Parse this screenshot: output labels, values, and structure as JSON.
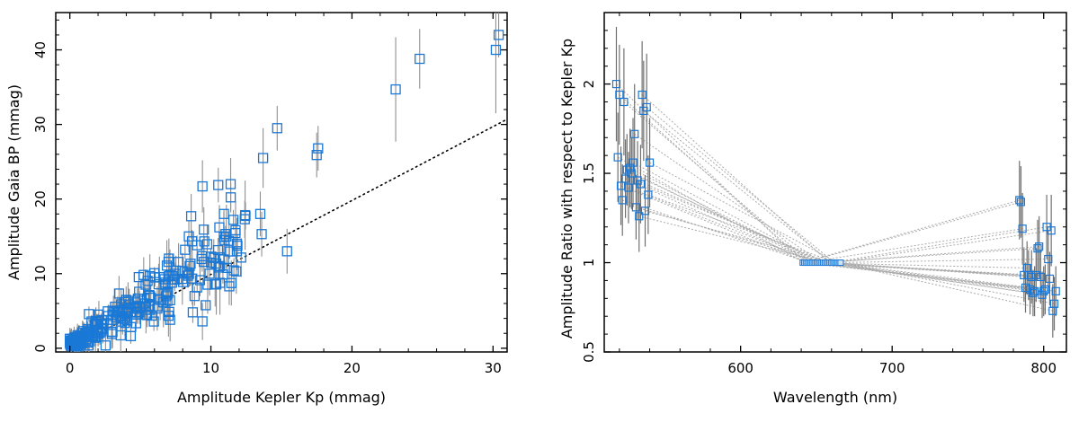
{
  "chart_data": [
    {
      "type": "scatter",
      "title": "",
      "xlabel": "Amplitude Kepler Kp (mmag)",
      "ylabel": "Amplitude Gaia BP (mmag)",
      "xlim": [
        -1,
        31
      ],
      "ylim": [
        -0.5,
        45
      ],
      "x_ticks": [
        0,
        10,
        20,
        30
      ],
      "y_ticks": [
        0,
        10,
        20,
        30,
        40
      ],
      "x_tick_labels": [
        "0",
        "10",
        "20",
        "30"
      ],
      "y_tick_labels": [
        "0",
        "10",
        "20",
        "30",
        "40"
      ],
      "grid": false,
      "marker": "open-square",
      "marker_color": "#1a78d6",
      "errorbar_color": "#909090",
      "reference_line": {
        "style": "dotted",
        "color": "#000000",
        "points": [
          [
            0,
            0
          ],
          [
            31,
            30.7
          ]
        ]
      },
      "highlighted_points": [
        {
          "x": 30.4,
          "y": 42.0,
          "err": 3.0
        },
        {
          "x": 30.2,
          "y": 40.0,
          "err": 8.5
        },
        {
          "x": 24.8,
          "y": 38.8,
          "err": 4.0
        },
        {
          "x": 23.1,
          "y": 34.7,
          "err": 7.0
        },
        {
          "x": 14.7,
          "y": 29.5,
          "err": 3.0
        },
        {
          "x": 17.6,
          "y": 26.8,
          "err": 3.0
        },
        {
          "x": 17.5,
          "y": 25.9,
          "err": 3.0
        },
        {
          "x": 13.7,
          "y": 25.5,
          "err": 4.0
        },
        {
          "x": 9.4,
          "y": 21.7,
          "err": 3.5
        },
        {
          "x": 11.4,
          "y": 22.0,
          "err": 3.5
        },
        {
          "x": 9.5,
          "y": 15.9,
          "err": 3.0
        },
        {
          "x": 12.4,
          "y": 17.3,
          "err": 2.5
        },
        {
          "x": 13.5,
          "y": 18.0,
          "err": 3.0
        },
        {
          "x": 15.4,
          "y": 13.0,
          "err": 3.0
        },
        {
          "x": 13.6,
          "y": 15.3,
          "err": 3.0
        },
        {
          "x": 10.6,
          "y": 16.2,
          "err": 3.0
        },
        {
          "x": 11.8,
          "y": 10.3,
          "err": 3.0
        },
        {
          "x": 11.3,
          "y": 8.3,
          "err": 2.5
        },
        {
          "x": 9.4,
          "y": 3.6,
          "err": 2.5
        },
        {
          "x": 10.3,
          "y": 8.6,
          "err": 3.0
        },
        {
          "x": 8.6,
          "y": 17.7,
          "err": 3.0
        }
      ],
      "point_cloud_note_free": true,
      "point_cloud": {
        "count": 260,
        "x_range": [
          0,
          12.5
        ],
        "slope_y_per_x": 1.25,
        "scatter": 1.8,
        "error_range": [
          0.5,
          3.5
        ]
      }
    },
    {
      "type": "scatter",
      "title": "",
      "xlabel": "Wavelength (nm)",
      "ylabel": "Amplitude Ratio with respect to Kepler Kp",
      "xlim": [
        510,
        815
      ],
      "ylim": [
        0.5,
        2.4
      ],
      "x_ticks": [
        600,
        700,
        800
      ],
      "y_ticks": [
        0.5,
        1,
        1.5,
        2
      ],
      "x_tick_labels": [
        "600",
        "700",
        "800"
      ],
      "y_tick_labels": [
        "0.5",
        "1",
        "1.5",
        "2"
      ],
      "grid": false,
      "marker": "open-square",
      "marker_color": "#1a78d6",
      "errorbar_color": "#707070",
      "connector_style": "dotted",
      "connector_color": "#aaaaaa",
      "kepler_reference": {
        "x_range": [
          641,
          666
        ],
        "y": 1.0
      },
      "bp_points": [
        {
          "x": 518,
          "y": 2.0,
          "err": 0.32
        },
        {
          "x": 519,
          "y": 1.59,
          "err": 0.25
        },
        {
          "x": 520,
          "y": 1.94,
          "err": 0.28
        },
        {
          "x": 521,
          "y": 1.43,
          "err": 0.22
        },
        {
          "x": 522,
          "y": 1.35,
          "err": 0.2
        },
        {
          "x": 523,
          "y": 1.9,
          "err": 0.3
        },
        {
          "x": 524,
          "y": 1.47,
          "err": 0.22
        },
        {
          "x": 525,
          "y": 1.52,
          "err": 0.2
        },
        {
          "x": 526,
          "y": 1.42,
          "err": 0.2
        },
        {
          "x": 527,
          "y": 1.53,
          "err": 0.22
        },
        {
          "x": 528,
          "y": 1.5,
          "err": 0.2
        },
        {
          "x": 529,
          "y": 1.56,
          "err": 0.25
        },
        {
          "x": 530,
          "y": 1.72,
          "err": 0.28
        },
        {
          "x": 531,
          "y": 1.31,
          "err": 0.18
        },
        {
          "x": 532,
          "y": 1.46,
          "err": 0.22
        },
        {
          "x": 533,
          "y": 1.26,
          "err": 0.2
        },
        {
          "x": 534,
          "y": 1.44,
          "err": 0.22
        },
        {
          "x": 535,
          "y": 1.94,
          "err": 0.3
        },
        {
          "x": 536,
          "y": 1.85,
          "err": 0.28
        },
        {
          "x": 537,
          "y": 1.29,
          "err": 0.2
        },
        {
          "x": 538,
          "y": 1.87,
          "err": 0.3
        },
        {
          "x": 539,
          "y": 1.38,
          "err": 0.22
        },
        {
          "x": 540,
          "y": 1.56,
          "err": 0.25
        }
      ],
      "rp_points": [
        {
          "x": 784,
          "y": 1.35,
          "err": 0.22
        },
        {
          "x": 785,
          "y": 1.34,
          "err": 0.2
        },
        {
          "x": 786,
          "y": 1.19,
          "err": 0.2
        },
        {
          "x": 787,
          "y": 0.93,
          "err": 0.15
        },
        {
          "x": 788,
          "y": 0.86,
          "err": 0.14
        },
        {
          "x": 789,
          "y": 0.97,
          "err": 0.15
        },
        {
          "x": 790,
          "y": 0.93,
          "err": 0.14
        },
        {
          "x": 791,
          "y": 0.85,
          "err": 0.14
        },
        {
          "x": 792,
          "y": 0.92,
          "err": 0.15
        },
        {
          "x": 793,
          "y": 0.83,
          "err": 0.13
        },
        {
          "x": 794,
          "y": 0.84,
          "err": 0.14
        },
        {
          "x": 795,
          "y": 0.93,
          "err": 0.15
        },
        {
          "x": 796,
          "y": 1.08,
          "err": 0.16
        },
        {
          "x": 797,
          "y": 1.09,
          "err": 0.17
        },
        {
          "x": 798,
          "y": 0.92,
          "err": 0.15
        },
        {
          "x": 799,
          "y": 0.82,
          "err": 0.13
        },
        {
          "x": 800,
          "y": 0.84,
          "err": 0.14
        },
        {
          "x": 801,
          "y": 0.85,
          "err": 0.14
        },
        {
          "x": 802,
          "y": 1.2,
          "err": 0.18
        },
        {
          "x": 803,
          "y": 1.02,
          "err": 0.16
        },
        {
          "x": 804,
          "y": 0.91,
          "err": 0.15
        },
        {
          "x": 805,
          "y": 1.18,
          "err": 0.2
        },
        {
          "x": 806,
          "y": 0.73,
          "err": 0.15
        },
        {
          "x": 807,
          "y": 0.77,
          "err": 0.15
        },
        {
          "x": 808,
          "y": 0.84,
          "err": 0.14
        }
      ]
    }
  ]
}
